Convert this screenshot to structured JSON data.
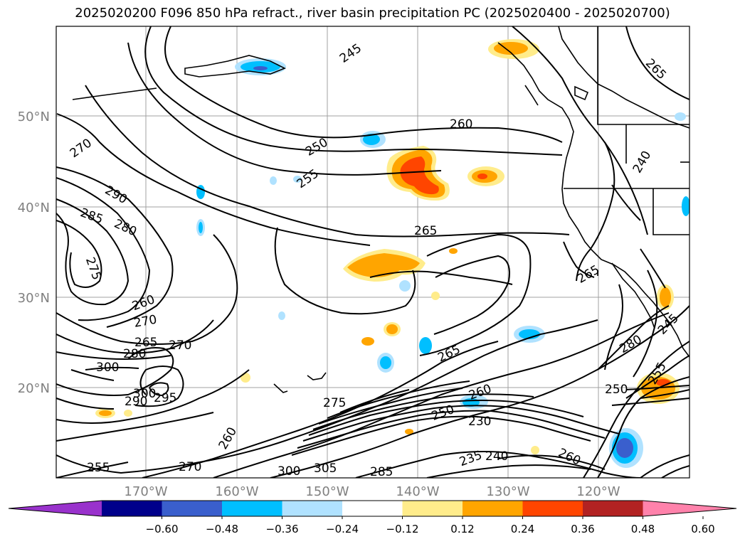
{
  "title": "2025020200 F096 850 hPa refract., river basin precipitation PC (2025020400 - 2025020700)",
  "lat_labels": [
    "50°N",
    "40°N",
    "30°N",
    "20°N"
  ],
  "lon_labels": [
    "170°W",
    "160°W",
    "150°W",
    "140°W",
    "130°W",
    "120°W"
  ],
  "contour_labels": [
    "245",
    "265",
    "270",
    "250",
    "260",
    "255",
    "240",
    "265",
    "290",
    "285",
    "280",
    "275",
    "260",
    "270",
    "265",
    "280",
    "270",
    "300",
    "300",
    "290",
    "295",
    "275",
    "260",
    "255",
    "270",
    "300",
    "305",
    "285",
    "265",
    "260",
    "250",
    "230",
    "235",
    "240",
    "260",
    "265",
    "250",
    "255",
    "280",
    "245"
  ],
  "colorbar": {
    "colors": [
      "#9932cc",
      "#00008b",
      "#3a5fcd",
      "#00bfff",
      "#b0e2ff",
      "#ffffff",
      "#ffec8b",
      "#ffa500",
      "#ff4500",
      "#b22222",
      "#ff82ab"
    ],
    "tick_labels": [
      "−0.60",
      "−0.48",
      "−0.36",
      "−0.24",
      "−0.12",
      "0.12",
      "0.24",
      "0.36",
      "0.48",
      "0.60"
    ]
  }
}
